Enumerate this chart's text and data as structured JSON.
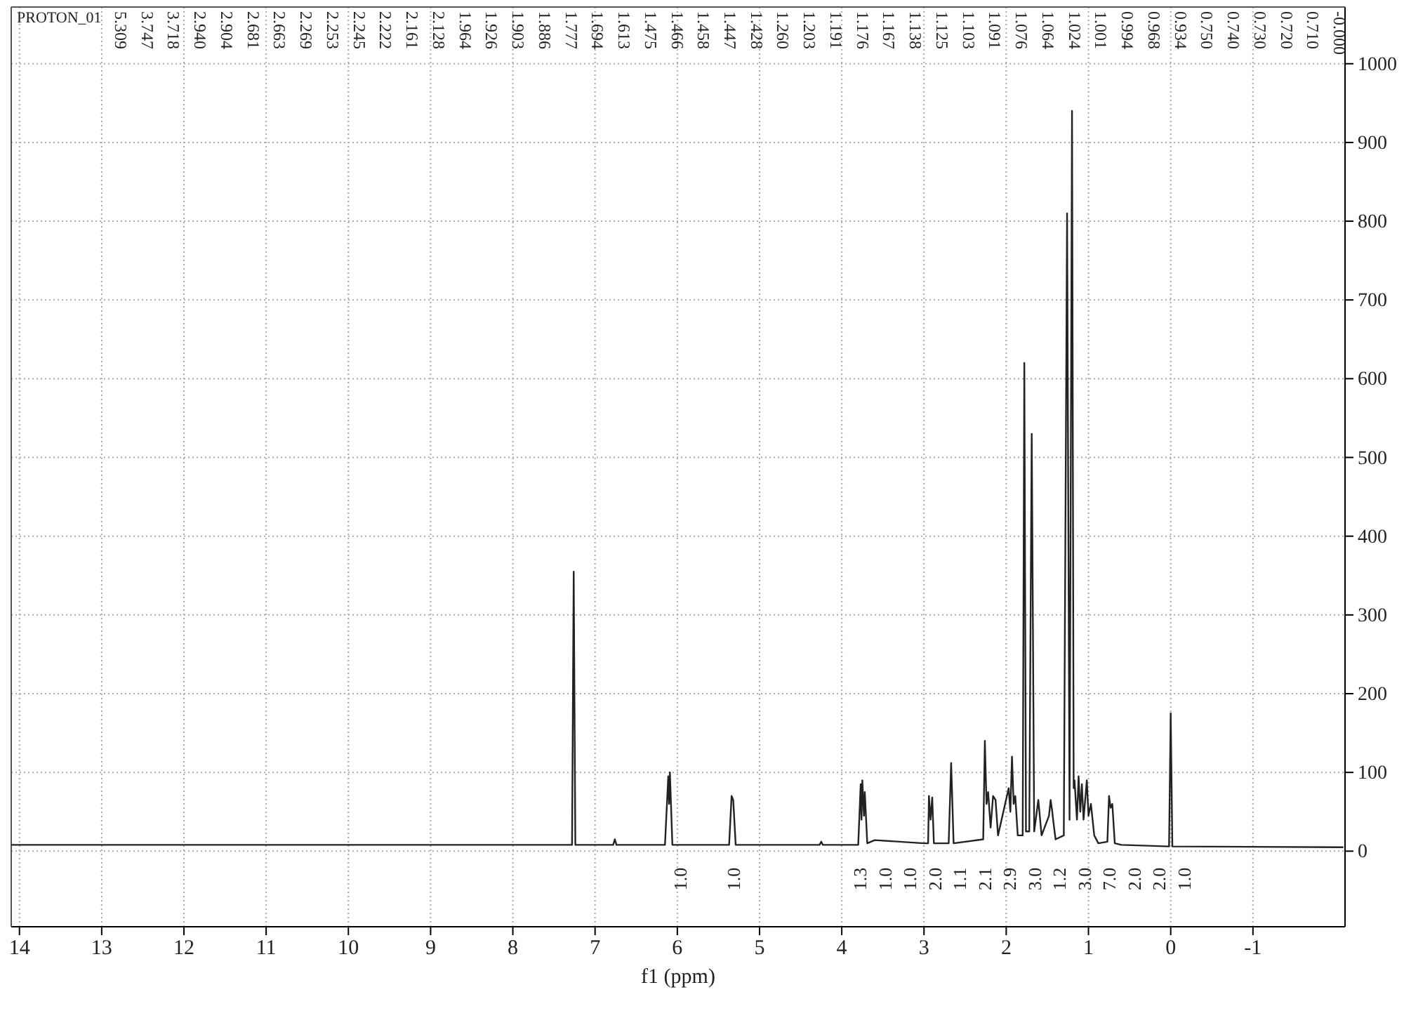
{
  "chart_data": {
    "type": "line",
    "title": "PROTON_01",
    "xlabel": "f1 (ppm)",
    "xlim": [
      14.1,
      -2.12
    ],
    "xticks": [
      14,
      13,
      12,
      11,
      10,
      9,
      8,
      7,
      6,
      5,
      4,
      3,
      2,
      1,
      0,
      -1
    ],
    "ylim": [
      -96,
      1072
    ],
    "yticks": [
      0,
      100,
      200,
      300,
      400,
      500,
      600,
      700,
      800,
      900,
      1000
    ],
    "grid": true,
    "marker": "none",
    "line_style": "solid",
    "series": [
      {
        "color": "#222222",
        "x": [
          14.1,
          7.28,
          7.26,
          7.24,
          6.78,
          6.76,
          6.74,
          6.15,
          6.11,
          6.1,
          6.09,
          6.06,
          5.37,
          5.34,
          5.32,
          5.29,
          4.27,
          4.25,
          4.23,
          3.8,
          3.77,
          3.76,
          3.75,
          3.73,
          3.72,
          3.69,
          3.6,
          3.0,
          2.95,
          2.94,
          2.92,
          2.9,
          2.88,
          2.7,
          2.67,
          2.64,
          2.28,
          2.26,
          2.24,
          2.22,
          2.19,
          2.16,
          2.13,
          2.1,
          1.97,
          1.95,
          1.93,
          1.91,
          1.89,
          1.86,
          1.8,
          1.78,
          1.76,
          1.72,
          1.69,
          1.66,
          1.61,
          1.57,
          1.48,
          1.46,
          1.44,
          1.43,
          1.4,
          1.3,
          1.26,
          1.23,
          1.2,
          1.18,
          1.17,
          1.14,
          1.12,
          1.1,
          1.08,
          1.06,
          1.02,
          1.0,
          0.97,
          0.93,
          0.88,
          0.77,
          0.75,
          0.73,
          0.71,
          0.68,
          0.6,
          0.02,
          0.0,
          -0.02,
          -2.1
        ],
        "values": [
          8,
          8,
          355,
          8,
          8,
          15,
          8,
          8,
          95,
          60,
          100,
          8,
          8,
          70,
          65,
          8,
          8,
          12,
          8,
          8,
          85,
          40,
          90,
          45,
          75,
          10,
          14,
          10,
          10,
          70,
          40,
          68,
          10,
          10,
          112,
          10,
          15,
          140,
          60,
          75,
          30,
          70,
          65,
          20,
          80,
          50,
          120,
          60,
          70,
          20,
          20,
          620,
          25,
          25,
          530,
          25,
          65,
          20,
          45,
          65,
          50,
          40,
          15,
          20,
          810,
          40,
          940,
          80,
          90,
          40,
          95,
          50,
          85,
          40,
          90,
          45,
          60,
          20,
          10,
          12,
          70,
          55,
          60,
          10,
          8,
          6,
          175,
          6,
          5
        ]
      }
    ],
    "annotations": [
      "5.309",
      "3.747",
      "3.718",
      "2.940",
      "2.904",
      "2.681",
      "2.663",
      "2.269",
      "2.253",
      "2.245",
      "2.222",
      "2.161",
      "2.128",
      "1.964",
      "1.926",
      "1.903",
      "1.886",
      "1.777",
      "1.694",
      "1.613",
      "1.475",
      "1.466",
      "1.458",
      "1.447",
      "1.428",
      "1.260",
      "1.203",
      "1.191",
      "1.176",
      "1.167",
      "1.138",
      "1.125",
      "1.103",
      "1.091",
      "1.076",
      "1.064",
      "1.024",
      "1.001",
      "0.994",
      "0.968",
      "0.934",
      "0.750",
      "0.740",
      "0.730",
      "0.720",
      "0.710",
      "-0.000",
      "1.0",
      "1.0",
      "1.3",
      "1.0",
      "1.0",
      "2.0",
      "1.1",
      "2.1",
      "2.9",
      "3.0",
      "1.2",
      "3.0",
      "7.0",
      "2.0",
      "2.0",
      "1.0"
    ]
  }
}
